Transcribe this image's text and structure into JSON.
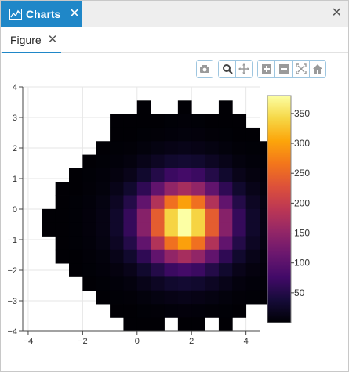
{
  "tabs": {
    "active_label": "Charts",
    "active_close": "✕",
    "window_close": "✕"
  },
  "subtabs": {
    "figure_label": "Figure",
    "figure_close": "✕"
  },
  "toolbar": {
    "buttons": [
      {
        "name": "camera-icon"
      },
      {
        "name": "zoom-icon"
      },
      {
        "name": "pan-icon"
      },
      {
        "name": "zoom-in-icon"
      },
      {
        "name": "zoom-out-icon"
      },
      {
        "name": "autoscale-icon"
      },
      {
        "name": "home-icon"
      }
    ]
  },
  "colors": {
    "accent": "#1f87c8",
    "colormap": "inferno"
  },
  "chart_data": {
    "type": "heatmap",
    "title": "",
    "xlabel": "",
    "ylabel": "",
    "xlim": [
      -4.2,
      4.5
    ],
    "ylim": [
      -4.0,
      4.0
    ],
    "x_ticks": [
      -4,
      -2,
      0,
      2,
      4
    ],
    "y_ticks": [
      -4,
      -3,
      -2,
      -1,
      0,
      1,
      2,
      3,
      4
    ],
    "bin_x_start": -4.0,
    "bin_width": 0.5,
    "bin_y_top": 4.0,
    "bin_height": 0.444,
    "colorbar": {
      "min": 0,
      "max": 380,
      "ticks": [
        50,
        100,
        150,
        200,
        250,
        300,
        350
      ]
    },
    "z": [
      [
        null,
        null,
        null,
        null,
        null,
        null,
        null,
        null,
        null,
        null,
        null,
        null,
        null,
        null,
        null,
        null,
        null,
        null
      ],
      [
        null,
        null,
        null,
        null,
        null,
        null,
        null,
        null,
        1,
        null,
        null,
        1,
        null,
        null,
        1,
        null,
        null,
        null
      ],
      [
        null,
        null,
        null,
        null,
        null,
        null,
        1,
        1,
        1,
        1,
        2,
        3,
        2,
        1,
        1,
        1,
        null,
        null
      ],
      [
        null,
        null,
        null,
        null,
        null,
        null,
        1,
        1,
        2,
        3,
        4,
        6,
        5,
        3,
        2,
        1,
        1,
        null
      ],
      [
        null,
        null,
        null,
        null,
        null,
        1,
        2,
        3,
        6,
        9,
        12,
        14,
        12,
        9,
        6,
        3,
        2,
        1
      ],
      [
        null,
        null,
        null,
        null,
        1,
        2,
        4,
        7,
        14,
        22,
        30,
        33,
        30,
        22,
        14,
        7,
        4,
        2
      ],
      [
        null,
        null,
        null,
        1,
        2,
        4,
        8,
        15,
        30,
        50,
        70,
        78,
        70,
        50,
        30,
        15,
        8,
        4
      ],
      [
        null,
        null,
        1,
        1,
        3,
        6,
        14,
        30,
        60,
        105,
        150,
        170,
        150,
        105,
        60,
        30,
        14,
        6
      ],
      [
        null,
        null,
        1,
        2,
        4,
        9,
        22,
        50,
        105,
        180,
        260,
        300,
        260,
        180,
        105,
        50,
        22,
        9
      ],
      [
        null,
        1,
        1,
        2,
        5,
        11,
        28,
        65,
        140,
        240,
        340,
        380,
        340,
        240,
        140,
        65,
        28,
        11
      ],
      [
        null,
        1,
        1,
        2,
        5,
        11,
        28,
        65,
        140,
        240,
        340,
        380,
        340,
        240,
        140,
        65,
        28,
        11
      ],
      [
        null,
        null,
        1,
        2,
        4,
        9,
        22,
        50,
        105,
        180,
        260,
        300,
        260,
        180,
        105,
        50,
        22,
        9
      ],
      [
        null,
        null,
        1,
        1,
        3,
        6,
        14,
        30,
        60,
        105,
        150,
        170,
        150,
        105,
        60,
        30,
        14,
        6
      ],
      [
        null,
        null,
        null,
        1,
        2,
        4,
        8,
        15,
        30,
        50,
        70,
        78,
        70,
        50,
        30,
        15,
        8,
        4
      ],
      [
        null,
        null,
        null,
        null,
        1,
        2,
        4,
        7,
        14,
        22,
        30,
        33,
        30,
        22,
        14,
        7,
        4,
        2
      ],
      [
        null,
        null,
        null,
        null,
        null,
        1,
        2,
        3,
        6,
        9,
        12,
        14,
        12,
        9,
        6,
        3,
        2,
        1
      ],
      [
        null,
        null,
        null,
        null,
        null,
        null,
        1,
        1,
        2,
        3,
        4,
        5,
        4,
        3,
        2,
        1,
        null,
        null
      ],
      [
        null,
        null,
        null,
        null,
        null,
        null,
        null,
        1,
        1,
        1,
        null,
        1,
        1,
        null,
        1,
        null,
        null,
        null
      ]
    ]
  }
}
